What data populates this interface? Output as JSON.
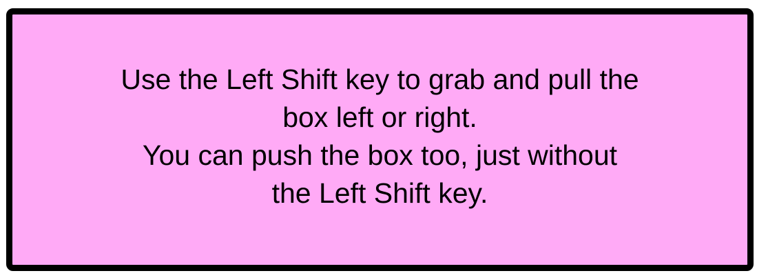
{
  "dialog": {
    "background_color": "#ffaaf6",
    "border_color": "#000000",
    "lines": [
      "Use the Left Shift key to grab and pull the",
      "box left or right.",
      "You can push the box too, just without",
      "the Left Shift key."
    ]
  }
}
